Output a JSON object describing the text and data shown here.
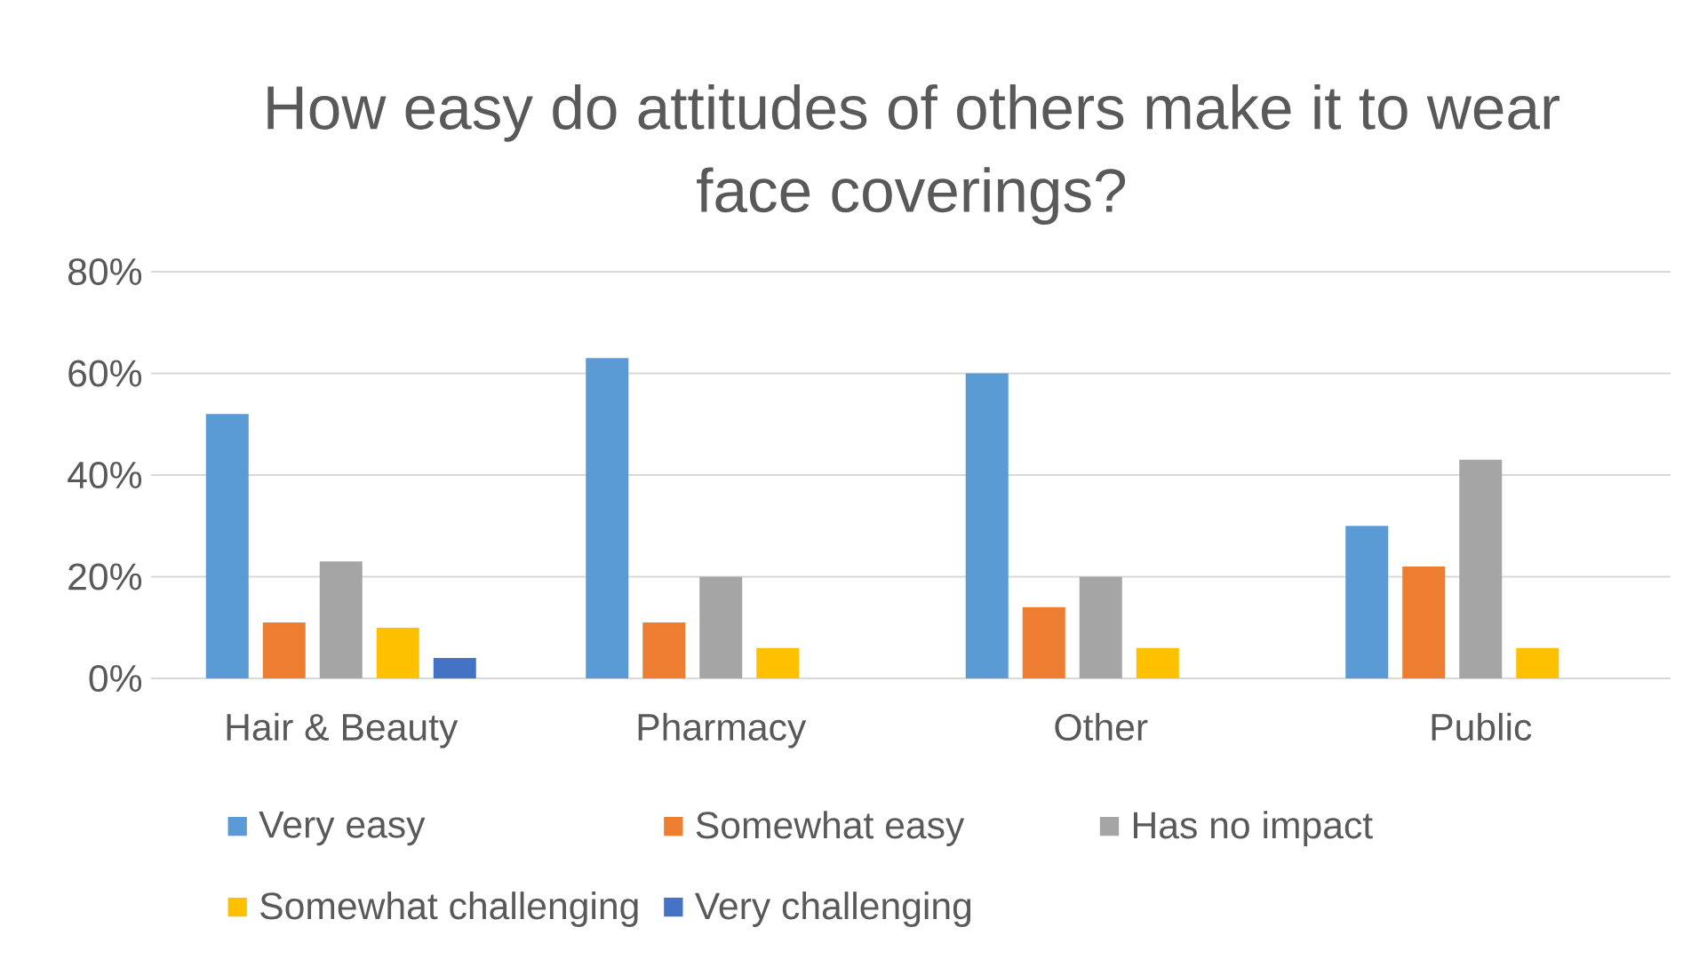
{
  "chart_data": {
    "type": "bar",
    "title": "How easy do attitudes of others make it to wear face coverings?",
    "categories": [
      "Hair & Beauty",
      "Pharmacy",
      "Other",
      "Public"
    ],
    "series": [
      {
        "name": "Very easy",
        "color": "#5b9bd5",
        "values": [
          52,
          63,
          60,
          30
        ]
      },
      {
        "name": "Somewhat easy",
        "color": "#ed7d31",
        "values": [
          11,
          11,
          14,
          22
        ]
      },
      {
        "name": "Has no impact",
        "color": "#a5a5a5",
        "values": [
          23,
          20,
          20,
          43
        ]
      },
      {
        "name": "Somewhat challenging",
        "color": "#ffc000",
        "values": [
          10,
          6,
          6,
          6
        ]
      },
      {
        "name": "Very challenging",
        "color": "#4472c4",
        "values": [
          4,
          null,
          null,
          null
        ]
      }
    ],
    "ylim": [
      0,
      80
    ],
    "yticks": [
      {
        "value": 0,
        "label": "0%"
      },
      {
        "value": 20,
        "label": "20%"
      },
      {
        "value": 40,
        "label": "40%"
      },
      {
        "value": 60,
        "label": "60%"
      },
      {
        "value": 80,
        "label": "80%"
      }
    ],
    "grid": "y",
    "legend": "bottom"
  }
}
